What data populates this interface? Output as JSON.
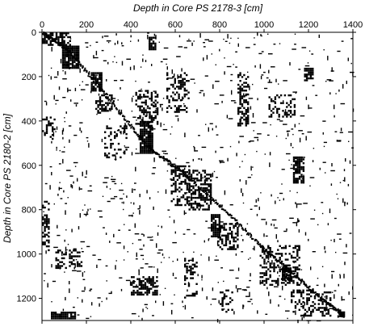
{
  "chart_data": {
    "type": "heatmap",
    "title": "",
    "xlabel": "Depth in Core PS 2178-3  [cm]",
    "ylabel": "Depth in Core PS 2180-2  [cm]",
    "x_axis_position": "top",
    "xlim": [
      0,
      1400
    ],
    "ylim": [
      0,
      1300
    ],
    "y_inverted": true,
    "x_ticks": [
      0,
      200,
      400,
      600,
      800,
      1000,
      1200,
      1400
    ],
    "y_ticks": [
      0,
      200,
      400,
      600,
      800,
      1000,
      1200
    ],
    "legend": "none",
    "grid": false,
    "colors": {
      "cell": "#000000",
      "background": "#ffffff"
    },
    "clusters": [
      {
        "x": [
          0,
          130
        ],
        "y": [
          0,
          60
        ],
        "density": 0.6
      },
      {
        "x": [
          90,
          165
        ],
        "y": [
          60,
          160
        ],
        "density": 0.9
      },
      {
        "x": [
          220,
          265
        ],
        "y": [
          180,
          260
        ],
        "density": 0.85
      },
      {
        "x": [
          440,
          500
        ],
        "y": [
          400,
          540
        ],
        "density": 0.9
      },
      {
        "x": [
          420,
          520
        ],
        "y": [
          260,
          420
        ],
        "density": 0.4
      },
      {
        "x": [
          580,
          660
        ],
        "y": [
          600,
          780
        ],
        "density": 0.5
      },
      {
        "x": [
          660,
          760
        ],
        "y": [
          620,
          800
        ],
        "density": 0.55
      },
      {
        "x": [
          760,
          800
        ],
        "y": [
          820,
          920
        ],
        "density": 0.8
      },
      {
        "x": [
          790,
          880
        ],
        "y": [
          860,
          980
        ],
        "density": 0.5
      },
      {
        "x": [
          1080,
          1120
        ],
        "y": [
          1060,
          1120
        ],
        "density": 0.9
      },
      {
        "x": [
          980,
          1160
        ],
        "y": [
          960,
          1140
        ],
        "density": 0.35
      },
      {
        "x": [
          1130,
          1180
        ],
        "y": [
          560,
          680
        ],
        "density": 0.75
      },
      {
        "x": [
          1180,
          1220
        ],
        "y": [
          160,
          220
        ],
        "density": 0.8
      },
      {
        "x": [
          400,
          520
        ],
        "y": [
          1100,
          1180
        ],
        "density": 0.55
      },
      {
        "x": [
          40,
          150
        ],
        "y": [
          1260,
          1290
        ],
        "density": 0.95
      },
      {
        "x": [
          480,
          510
        ],
        "y": [
          20,
          80
        ],
        "density": 0.8
      },
      {
        "x": [
          0,
          60
        ],
        "y": [
          380,
          480
        ],
        "density": 0.4
      },
      {
        "x": [
          0,
          30
        ],
        "y": [
          760,
          980
        ],
        "density": 0.5
      },
      {
        "x": [
          240,
          320
        ],
        "y": [
          280,
          360
        ],
        "density": 0.4
      },
      {
        "x": [
          880,
          930
        ],
        "y": [
          180,
          420
        ],
        "density": 0.45
      },
      {
        "x": [
          560,
          660
        ],
        "y": [
          180,
          360
        ],
        "density": 0.3
      },
      {
        "x": [
          280,
          380
        ],
        "y": [
          420,
          560
        ],
        "density": 0.3
      },
      {
        "x": [
          1120,
          1300
        ],
        "y": [
          1160,
          1280
        ],
        "density": 0.4
      },
      {
        "x": [
          1330,
          1360
        ],
        "y": [
          1250,
          1280
        ],
        "density": 0.95
      },
      {
        "x": [
          640,
          700
        ],
        "y": [
          1000,
          1200
        ],
        "density": 0.3
      },
      {
        "x": [
          60,
          180
        ],
        "y": [
          980,
          1060
        ],
        "density": 0.35
      },
      {
        "x": [
          800,
          860
        ],
        "y": [
          1160,
          1260
        ],
        "density": 0.3
      },
      {
        "x": [
          1020,
          1140
        ],
        "y": [
          280,
          380
        ],
        "density": 0.3
      }
    ],
    "diagonal_path": [
      [
        0,
        0
      ],
      [
        120,
        80
      ],
      [
        300,
        300
      ],
      [
        480,
        520
      ],
      [
        620,
        620
      ],
      [
        800,
        780
      ],
      [
        980,
        960
      ],
      [
        1120,
        1080
      ],
      [
        1260,
        1200
      ],
      [
        1360,
        1280
      ]
    ]
  }
}
